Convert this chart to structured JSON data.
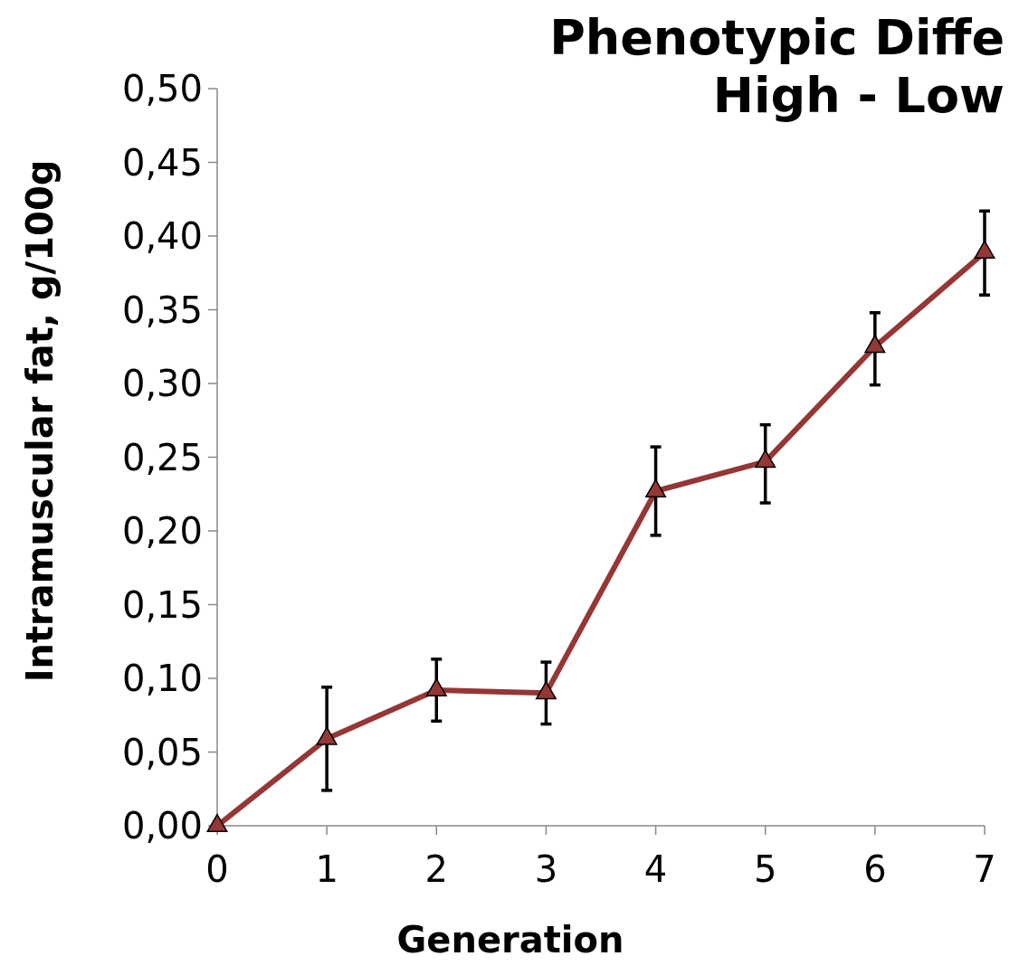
{
  "chart_data": {
    "type": "line",
    "title": "Phenotypic Diffe",
    "subtitle": "High - Low",
    "xlabel": "Generation",
    "ylabel": "Intramuscular fat, g/100g",
    "x": [
      0,
      1,
      2,
      3,
      4,
      5,
      6,
      7
    ],
    "series": [
      {
        "color": "#953735",
        "values": [
          0,
          0.059,
          0.092,
          0.09,
          0.227,
          0.247,
          0.325,
          0.389
        ],
        "errors": [
          null,
          [
            0.024,
            0.094
          ],
          [
            0.071,
            0.113
          ],
          [
            0.069,
            0.111
          ],
          [
            0.197,
            0.257
          ],
          [
            0.219,
            0.272
          ],
          [
            0.299,
            0.348
          ],
          [
            0.36,
            0.417
          ]
        ]
      }
    ],
    "xlim": [
      0,
      7
    ],
    "xticks": [
      0,
      1,
      2,
      3,
      4,
      5,
      6,
      7
    ],
    "ylim": [
      0,
      0.5
    ],
    "yticks": [
      {
        "value": 0,
        "label": "0,00"
      },
      {
        "value": 0.05,
        "label": "0,05"
      },
      {
        "value": 0.1,
        "label": "0,10"
      },
      {
        "value": 0.15,
        "label": "0,15"
      },
      {
        "value": 0.2,
        "label": "0,20"
      },
      {
        "value": 0.25,
        "label": "0,25"
      },
      {
        "value": 0.3,
        "label": "0,30"
      },
      {
        "value": 0.35,
        "label": "0,35"
      },
      {
        "value": 0.4,
        "label": "0,40"
      },
      {
        "value": 0.45,
        "label": "0,45"
      },
      {
        "value": 0.5,
        "label": "0,50"
      }
    ],
    "grid": false,
    "marker": "triangle",
    "line_style": "solid"
  }
}
